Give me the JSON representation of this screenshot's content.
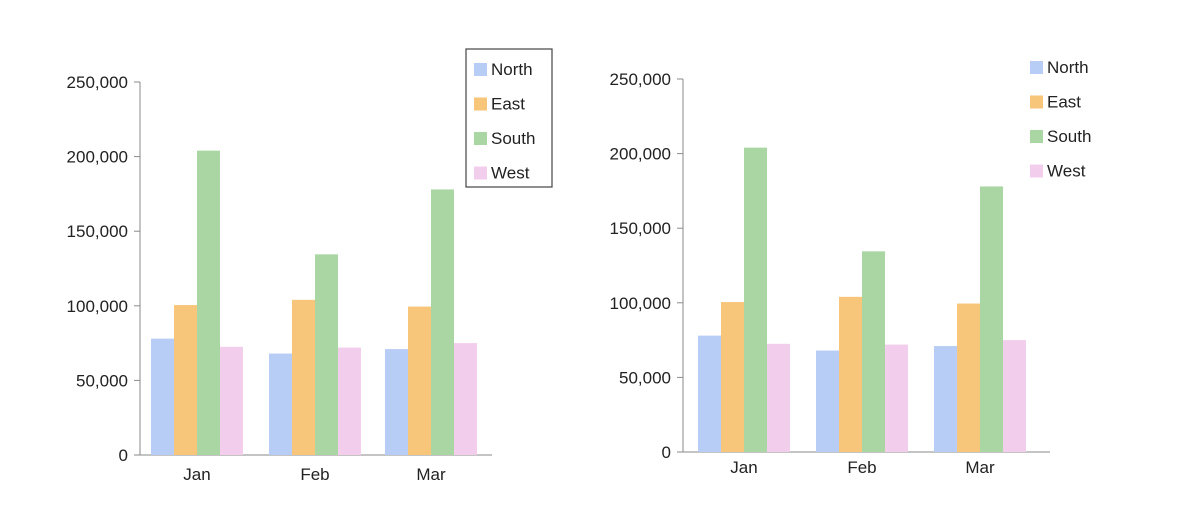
{
  "chart_data": [
    {
      "type": "bar",
      "categories": [
        "Jan",
        "Feb",
        "Mar"
      ],
      "series": [
        {
          "name": "North",
          "values": [
            78000,
            68000,
            71000
          ]
        },
        {
          "name": "East",
          "values": [
            100500,
            104000,
            99500
          ]
        },
        {
          "name": "South",
          "values": [
            204000,
            134500,
            178000
          ]
        },
        {
          "name": "West",
          "values": [
            72500,
            72000,
            75000
          ]
        }
      ],
      "yticks": [
        "0",
        "50,000",
        "100,000",
        "150,000",
        "200,000",
        "250,000"
      ],
      "ylim": [
        0,
        250000
      ],
      "legend": "top-right, boxed",
      "grid": false
    },
    {
      "type": "bar",
      "categories": [
        "Jan",
        "Feb",
        "Mar"
      ],
      "series": [
        {
          "name": "North",
          "values": [
            78000,
            68000,
            71000
          ]
        },
        {
          "name": "East",
          "values": [
            100500,
            104000,
            99500
          ]
        },
        {
          "name": "South",
          "values": [
            204000,
            134500,
            178000
          ]
        },
        {
          "name": "West",
          "values": [
            72500,
            72000,
            75000
          ]
        }
      ],
      "yticks": [
        "0",
        "50,000",
        "100,000",
        "150,000",
        "200,000",
        "250,000"
      ],
      "ylim": [
        0,
        250000
      ],
      "legend": "top-right, no border",
      "grid": false
    }
  ],
  "colors": {
    "North": "#b7cdf5",
    "East": "#f7c67a",
    "South": "#a9d6a3",
    "West": "#f3cdec",
    "axis": "#8a8a8a"
  }
}
